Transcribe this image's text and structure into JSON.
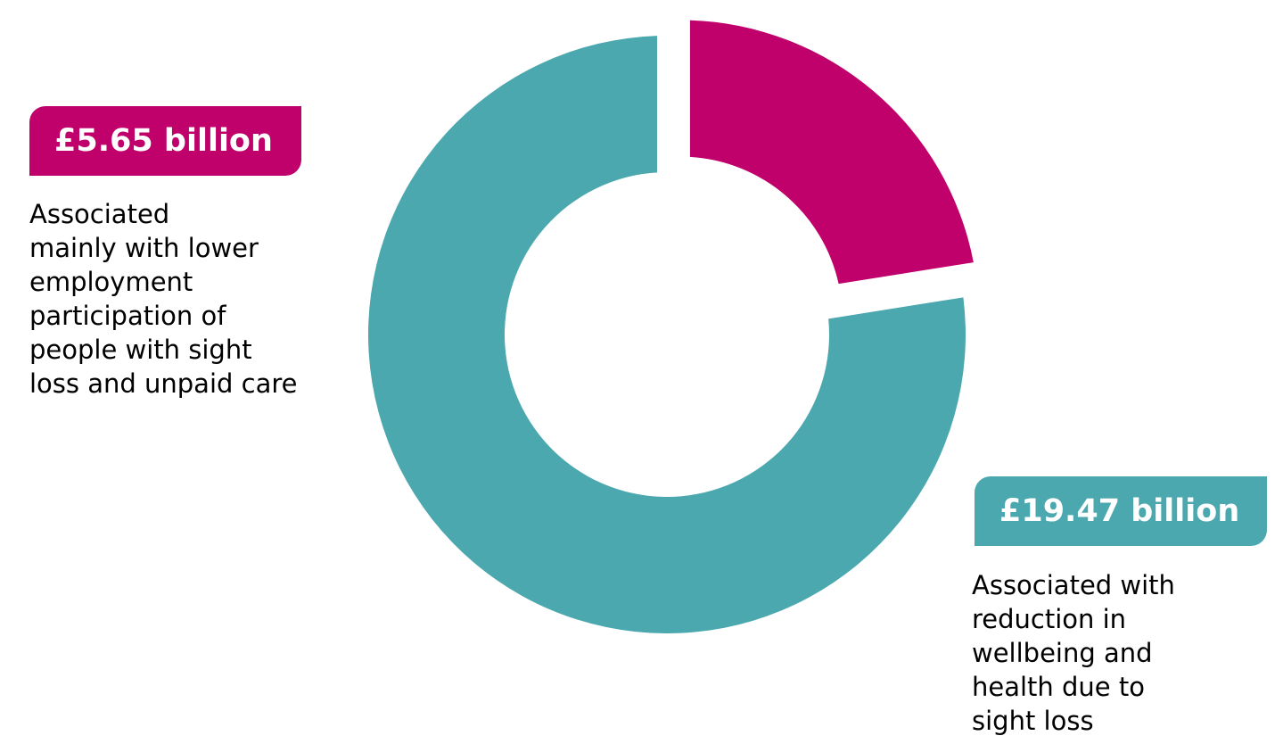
{
  "chart_data": {
    "type": "pie",
    "variant": "donut",
    "title": "",
    "categories": [
      "Associated mainly with lower employment participation of people with sight loss and unpaid care",
      "Associated with reduction in wellbeing and health due to sight loss"
    ],
    "values": [
      5.65,
      19.47
    ],
    "unit": "£ billion",
    "slices": [
      {
        "value": 5.65,
        "label": "£5.65 billion",
        "description": "Associated\nmainly with lower\nemployment\nparticipation of\npeople with sight\nloss and unpaid care",
        "color": "#C0006B",
        "exploded": true
      },
      {
        "value": 19.47,
        "label": "£19.47 billion",
        "description": "Associated with\nreduction in\nwellbeing and\nhealth due to\nsight loss",
        "color": "#4BA8AE",
        "exploded": false
      }
    ],
    "legend": "none",
    "grid": false
  }
}
